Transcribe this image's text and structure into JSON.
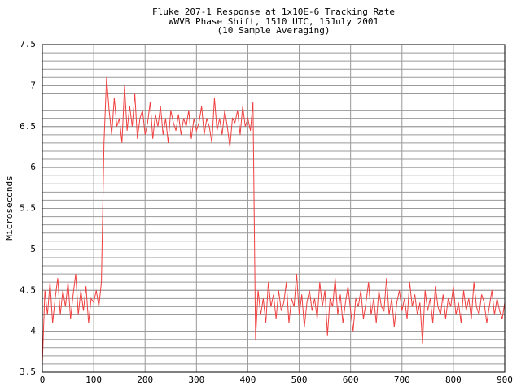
{
  "chart_data": {
    "type": "line",
    "title": "Fluke 207-1 Response at 1x10E-6 Tracking Rate",
    "subtitle": "WWVB Phase Shift, 1510 UTC, 15July 2001",
    "annotation": "(10 Sample Averaging)",
    "y_label": "Microseconds",
    "xlim": [
      0,
      900
    ],
    "ylim": [
      3.5,
      7.5
    ],
    "xticks": [
      0,
      100,
      200,
      300,
      400,
      500,
      600,
      700,
      800,
      900
    ],
    "yticks": [
      3.5,
      4,
      4.5,
      5,
      5.5,
      6,
      6.5,
      7,
      7.5
    ],
    "grid": true,
    "minor_grid_step": 0.1,
    "series": [
      {
        "color": "#f04040",
        "x": [
          0,
          5,
          10,
          15,
          20,
          25,
          30,
          35,
          40,
          45,
          50,
          55,
          60,
          65,
          70,
          75,
          80,
          85,
          90,
          95,
          100,
          105,
          110,
          115,
          120,
          125,
          130,
          135,
          140,
          145,
          150,
          155,
          160,
          165,
          170,
          175,
          180,
          185,
          190,
          195,
          200,
          205,
          210,
          215,
          220,
          225,
          230,
          235,
          240,
          245,
          250,
          255,
          260,
          265,
          270,
          275,
          280,
          285,
          290,
          295,
          300,
          305,
          310,
          315,
          320,
          325,
          330,
          335,
          340,
          345,
          350,
          355,
          360,
          365,
          370,
          375,
          380,
          385,
          390,
          395,
          400,
          405,
          410,
          415,
          420,
          425,
          430,
          435,
          440,
          445,
          450,
          455,
          460,
          465,
          470,
          475,
          480,
          485,
          490,
          495,
          500,
          505,
          510,
          515,
          520,
          525,
          530,
          535,
          540,
          545,
          550,
          555,
          560,
          565,
          570,
          575,
          580,
          585,
          590,
          595,
          600,
          605,
          610,
          615,
          620,
          625,
          630,
          635,
          640,
          645,
          650,
          655,
          660,
          665,
          670,
          675,
          680,
          685,
          690,
          695,
          700,
          705,
          710,
          715,
          720,
          725,
          730,
          735,
          740,
          745,
          750,
          755,
          760,
          765,
          770,
          775,
          780,
          785,
          790,
          795,
          800,
          805,
          810,
          815,
          820,
          825,
          830,
          835,
          840,
          845,
          850,
          855,
          860,
          865,
          870,
          875,
          880,
          885,
          890,
          895,
          900
        ],
        "values": [
          3.6,
          4.5,
          4.2,
          4.6,
          4.1,
          4.4,
          4.65,
          4.2,
          4.5,
          4.3,
          4.6,
          4.15,
          4.45,
          4.7,
          4.2,
          4.5,
          4.25,
          4.55,
          4.1,
          4.4,
          4.35,
          4.5,
          4.3,
          4.6,
          6.3,
          7.1,
          6.7,
          6.4,
          6.85,
          6.5,
          6.6,
          6.3,
          7.0,
          6.45,
          6.75,
          6.5,
          6.9,
          6.35,
          6.6,
          6.7,
          6.4,
          6.55,
          6.8,
          6.35,
          6.65,
          6.5,
          6.75,
          6.4,
          6.6,
          6.3,
          6.7,
          6.55,
          6.45,
          6.65,
          6.4,
          6.6,
          6.5,
          6.7,
          6.35,
          6.6,
          6.45,
          6.55,
          6.75,
          6.4,
          6.6,
          6.5,
          6.3,
          6.85,
          6.45,
          6.6,
          6.4,
          6.7,
          6.5,
          6.25,
          6.6,
          6.55,
          6.7,
          6.4,
          6.75,
          6.5,
          6.6,
          6.45,
          6.8,
          3.9,
          4.5,
          4.2,
          4.4,
          4.1,
          4.6,
          4.3,
          4.45,
          4.15,
          4.5,
          4.25,
          4.35,
          4.6,
          4.1,
          4.4,
          4.3,
          4.7,
          4.2,
          4.45,
          4.05,
          4.35,
          4.5,
          4.25,
          4.4,
          4.15,
          4.6,
          4.3,
          4.5,
          3.95,
          4.4,
          4.3,
          4.65,
          4.2,
          4.45,
          4.1,
          4.35,
          4.55,
          4.25,
          4.0,
          4.4,
          4.3,
          4.5,
          4.15,
          4.35,
          4.6,
          4.2,
          4.4,
          4.1,
          4.5,
          4.3,
          4.25,
          4.65,
          4.2,
          4.4,
          4.05,
          4.35,
          4.5,
          4.25,
          4.4,
          4.15,
          4.6,
          4.3,
          4.45,
          4.2,
          4.35,
          3.85,
          4.5,
          4.25,
          4.4,
          4.1,
          4.55,
          4.3,
          4.2,
          4.45,
          4.15,
          4.4,
          4.3,
          4.55,
          4.2,
          4.35,
          4.1,
          4.5,
          4.25,
          4.4,
          4.15,
          4.6,
          4.3,
          4.2,
          4.45,
          4.35,
          4.1,
          4.3,
          4.5,
          4.2,
          4.4,
          4.25,
          4.15,
          4.35
        ]
      }
    ]
  }
}
